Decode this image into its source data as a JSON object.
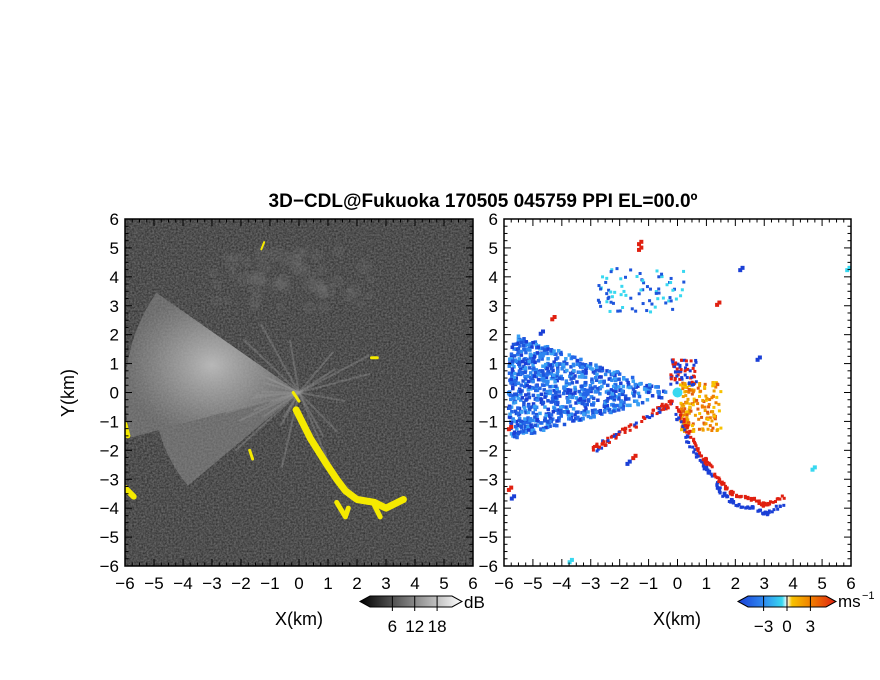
{
  "title": "3D−CDL@Fukuoka 170505 045759 PPI EL=00.0º",
  "colors": {
    "yellow": "#f5ea00",
    "background_dark": "#262626",
    "cyan": "#38d8f0"
  },
  "chart_data": [
    {
      "type": "heatmap",
      "panel": "left",
      "quantity": "dB",
      "xlabel": "X(km)",
      "ylabel": "Y(km)",
      "xlim": [
        -6,
        6
      ],
      "ylim": [
        -6,
        6
      ],
      "x_ticks": [
        "−6",
        "−5",
        "−4",
        "−3",
        "−2",
        "−1",
        "0",
        "1",
        "2",
        "3",
        "4",
        "5",
        "6"
      ],
      "y_ticks": [
        "6",
        "5",
        "4",
        "3",
        "2",
        "1",
        "0",
        "−1",
        "−2",
        "−3",
        "−4",
        "−5",
        "−6"
      ],
      "colorbar": {
        "unit": "dB",
        "range": [
          0,
          22
        ],
        "ticks": [
          "6",
          "12",
          "18"
        ],
        "tick_values": [
          6,
          12,
          18
        ],
        "colormap": "gray"
      },
      "sector_west_az_deg": [
        255,
        305
      ],
      "sector_west_range_km": 6,
      "sector_southwest_az_deg": [
        230,
        255
      ],
      "sector_southwest_range_km": 5
    },
    {
      "type": "heatmap",
      "panel": "right",
      "quantity": "Doppler velocity",
      "xlabel": "X(km)",
      "ylabel": "",
      "xlim": [
        -6,
        6
      ],
      "ylim": [
        -6,
        6
      ],
      "x_ticks": [
        "−6",
        "−5",
        "−4",
        "−3",
        "−2",
        "−1",
        "0",
        "1",
        "2",
        "3",
        "4",
        "5",
        "6"
      ],
      "y_ticks": [
        "6",
        "5",
        "4",
        "3",
        "2",
        "1",
        "0",
        "−1",
        "−2",
        "−3",
        "−4",
        "−5",
        "−6"
      ],
      "colorbar": {
        "unit": "ms",
        "unit_exp": "−1",
        "range": [
          -5,
          5
        ],
        "ticks": [
          "−3",
          "0",
          "3"
        ],
        "tick_values": [
          -3,
          0,
          3
        ],
        "colormap": "blue-cyan-orange-red"
      },
      "sector_west_az_deg": [
        255,
        290
      ],
      "sector_west_range_km": 6,
      "velocity_west_sector_ms": -3.5,
      "velocity_near_origin_east_ms": 3.5
    }
  ]
}
